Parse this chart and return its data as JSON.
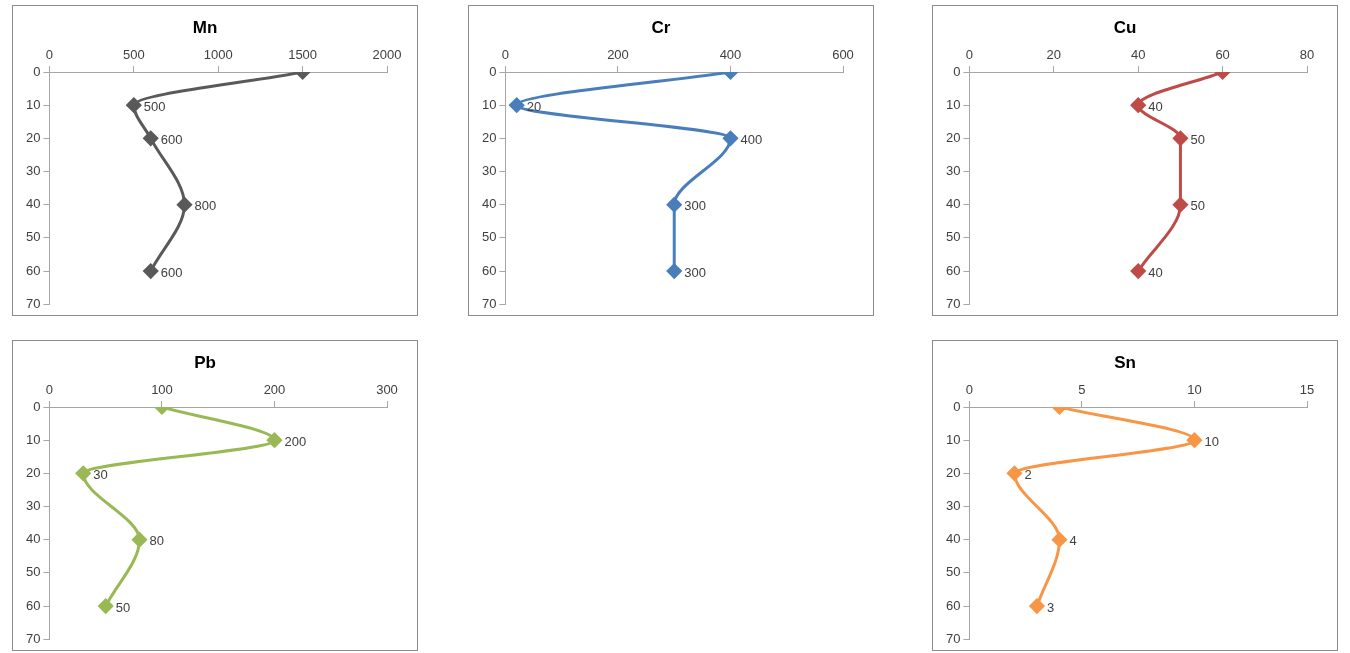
{
  "chart_data": [
    {
      "type": "line",
      "title": "Mn",
      "orientation": "horizontal",
      "x": [
        0,
        10,
        20,
        40,
        60
      ],
      "series": [
        {
          "color": "#595959",
          "values": [
            1500,
            500,
            600,
            800,
            600
          ],
          "value_labels": [
            null,
            "500",
            "600",
            "800",
            "600"
          ]
        }
      ],
      "xlim": [
        0,
        2000
      ],
      "xticks": [
        0,
        500,
        1000,
        1500,
        2000
      ],
      "ylim": [
        70,
        0
      ],
      "yticks": [
        0,
        10,
        20,
        30,
        40,
        50,
        60,
        70
      ],
      "marker": "diamond",
      "grid": false,
      "legend": false
    },
    {
      "type": "line",
      "title": "Cr",
      "orientation": "horizontal",
      "x": [
        0,
        10,
        20,
        40,
        60
      ],
      "series": [
        {
          "color": "#4a7ebb",
          "values": [
            400,
            20,
            400,
            300,
            300
          ],
          "value_labels": [
            null,
            "20",
            "400",
            "300",
            "300"
          ]
        }
      ],
      "xlim": [
        0,
        600
      ],
      "xticks": [
        0,
        200,
        400,
        600
      ],
      "ylim": [
        70,
        0
      ],
      "yticks": [
        0,
        10,
        20,
        30,
        40,
        50,
        60,
        70
      ],
      "marker": "diamond",
      "grid": false,
      "legend": false
    },
    {
      "type": "line",
      "title": "Cu",
      "orientation": "horizontal",
      "x": [
        0,
        10,
        20,
        40,
        60
      ],
      "series": [
        {
          "color": "#be4b48",
          "values": [
            60,
            40,
            50,
            50,
            40
          ],
          "value_labels": [
            null,
            "40",
            "50",
            "50",
            "40"
          ]
        }
      ],
      "xlim": [
        0,
        80
      ],
      "xticks": [
        0,
        20,
        40,
        60,
        80
      ],
      "ylim": [
        70,
        0
      ],
      "yticks": [
        0,
        10,
        20,
        30,
        40,
        50,
        60,
        70
      ],
      "marker": "diamond",
      "grid": false,
      "legend": false
    },
    {
      "type": "line",
      "title": "Pb",
      "orientation": "horizontal",
      "x": [
        0,
        10,
        20,
        40,
        60
      ],
      "series": [
        {
          "color": "#98b954",
          "values": [
            100,
            200,
            30,
            80,
            50
          ],
          "value_labels": [
            null,
            "200",
            "30",
            "80",
            "50"
          ]
        }
      ],
      "xlim": [
        0,
        300
      ],
      "xticks": [
        0,
        100,
        200,
        300
      ],
      "ylim": [
        70,
        0
      ],
      "yticks": [
        0,
        10,
        20,
        30,
        40,
        50,
        60,
        70
      ],
      "marker": "diamond",
      "grid": false,
      "legend": false
    },
    {
      "type": "line",
      "title": "Sn",
      "orientation": "horizontal",
      "x": [
        0,
        10,
        20,
        40,
        60
      ],
      "series": [
        {
          "color": "#f79646",
          "values": [
            4,
            10,
            2,
            4,
            3
          ],
          "value_labels": [
            null,
            "10",
            "2",
            "4",
            "3"
          ]
        }
      ],
      "xlim": [
        0,
        15
      ],
      "xticks": [
        0,
        5,
        10,
        15
      ],
      "ylim": [
        70,
        0
      ],
      "yticks": [
        0,
        10,
        20,
        30,
        40,
        50,
        60,
        70
      ],
      "marker": "diamond",
      "grid": false,
      "legend": false
    }
  ]
}
